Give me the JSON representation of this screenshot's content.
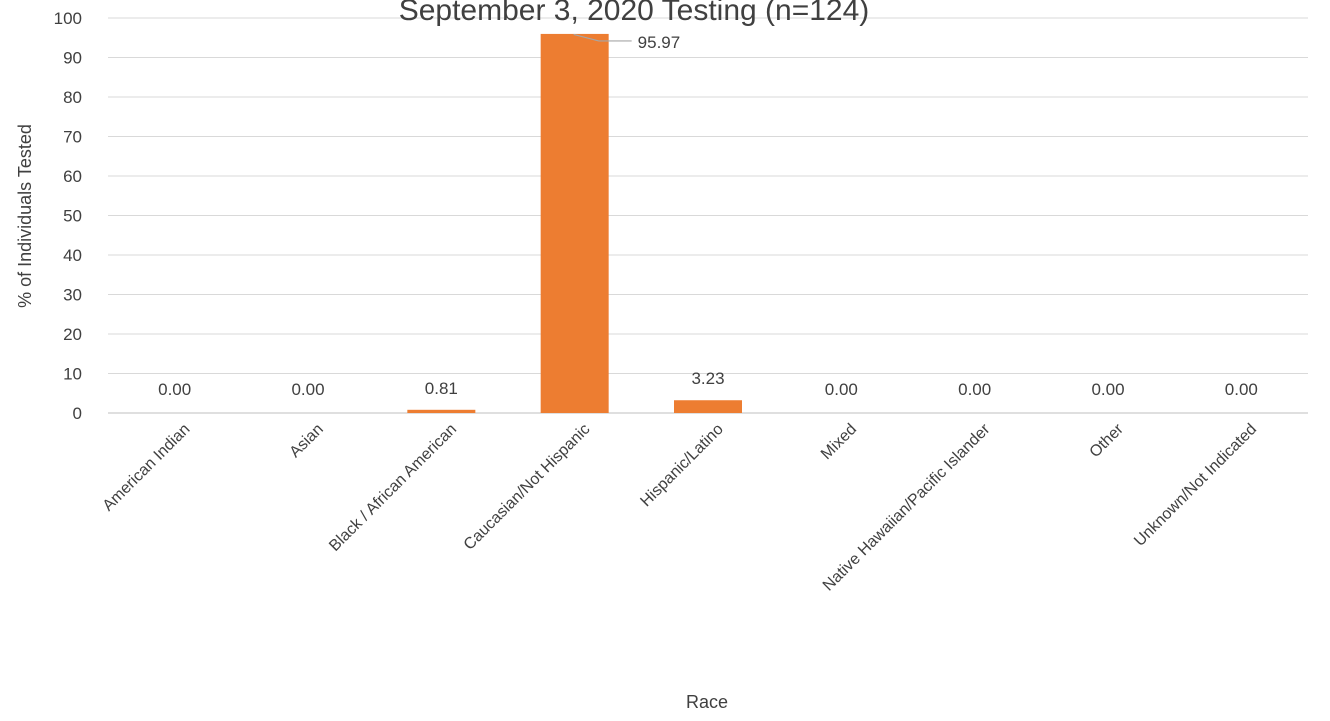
{
  "chart_data": {
    "type": "bar",
    "title": "September 3, 2020 Testing (n=124)",
    "xlabel": "Race",
    "ylabel": "% of Individuals Tested",
    "ylim": [
      0,
      100
    ],
    "yticks": [
      0,
      10,
      20,
      30,
      40,
      50,
      60,
      70,
      80,
      90,
      100
    ],
    "grid": true,
    "legend": "none",
    "bar_color": "#ED7D31",
    "categories": [
      "American Indian",
      "Asian",
      "Black / African American",
      "Caucasian/Not Hispanic",
      "Hispanic/Latino",
      "Mixed",
      "Native Hawaiian/Pacific Islander",
      "Other",
      "Unknown/Not Indicated"
    ],
    "values": [
      0.0,
      0.0,
      0.81,
      95.97,
      3.23,
      0.0,
      0.0,
      0.0,
      0.0
    ],
    "data_labels": [
      "0.00",
      "0.00",
      "0.81",
      "95.97",
      "3.23",
      "0.00",
      "0.00",
      "0.00",
      "0.00"
    ]
  }
}
